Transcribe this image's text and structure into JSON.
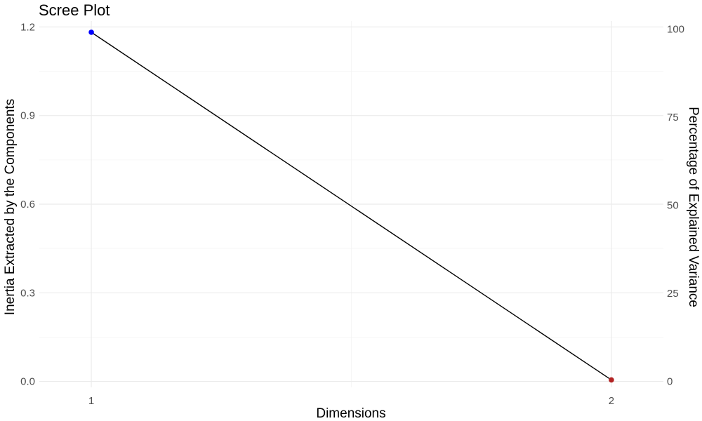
{
  "chart_data": {
    "type": "line",
    "title": "Scree Plot",
    "xlabel": "Dimensions",
    "ylabel": "Inertia Extracted by the Components",
    "y2label": "Percentage of Explained Variance",
    "x": [
      1,
      2
    ],
    "x_tick_labels": [
      "1",
      "2"
    ],
    "values": [
      1.182,
      0.005
    ],
    "point_colors": [
      "#0000ff",
      "#b22222"
    ],
    "line_color": "#000000",
    "ylim": [
      -0.02,
      1.22
    ],
    "y_ticks": [
      0.0,
      0.3,
      0.6,
      0.9,
      1.2
    ],
    "y_tick_labels": [
      "0.0",
      "0.3",
      "0.6",
      "0.9",
      "1.2"
    ],
    "y2_ticks": [
      0,
      25,
      50,
      75,
      100
    ],
    "y2_tick_labels": [
      "0",
      "25",
      "50",
      "75",
      "100"
    ],
    "y2_max_inertia": 1.193,
    "grid": true,
    "legend": "none"
  }
}
